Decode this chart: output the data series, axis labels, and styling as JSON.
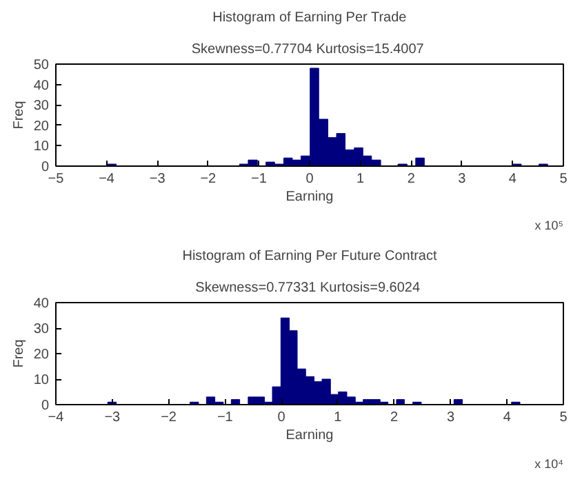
{
  "chart_data": [
    {
      "type": "histogram",
      "title": "Histogram of Earning Per Trade",
      "subtitle": "Skewness=0.77704  Kurtosis=15.4007",
      "xlabel": "Earning",
      "ylabel": "Freq",
      "annotations": [
        "x 10⁵"
      ],
      "color": "#00007f",
      "bins": [
        -3.98,
        -3.81,
        -3.63,
        -3.46,
        -3.29,
        -3.11,
        -2.94,
        -2.77,
        -2.59,
        -2.42,
        -2.25,
        -2.07,
        -1.9,
        -1.73,
        -1.55,
        -1.38,
        -1.21,
        -1.03,
        -0.86,
        -0.69,
        -0.51,
        -0.34,
        -0.17,
        0.01,
        0.18,
        0.36,
        0.53,
        0.7,
        0.88,
        1.05,
        1.22,
        1.4,
        1.57,
        1.74,
        1.92,
        2.09,
        2.26,
        2.44,
        2.61,
        2.78,
        2.96,
        3.13,
        3.3,
        3.48,
        3.65,
        3.82,
        4.0,
        4.17,
        4.34,
        4.52,
        4.69
      ],
      "values": [
        1,
        0,
        0,
        0,
        0,
        0,
        0,
        0,
        0,
        0,
        0,
        0,
        0,
        0,
        0,
        1,
        3,
        0,
        2,
        1,
        4,
        3,
        5,
        48,
        23,
        14,
        16,
        8,
        9,
        5,
        3,
        0,
        0,
        1,
        0,
        4,
        0,
        0,
        0,
        0,
        0,
        0,
        0,
        0,
        0,
        0,
        1,
        0,
        0,
        1
      ],
      "xlim": [
        -5,
        5
      ],
      "xticks": [
        -5,
        -4,
        -3,
        -2,
        -1,
        0,
        1,
        2,
        3,
        4,
        5
      ],
      "ylim": [
        0,
        50
      ],
      "yticks": [
        0,
        10,
        20,
        30,
        40,
        50
      ],
      "grid": false
    },
    {
      "type": "histogram",
      "title": "Histogram of Earning Per Future Contract",
      "subtitle": "Skewness=0.77331  Kurtosis=9.6024",
      "xlabel": "Earning",
      "ylabel": "Freq",
      "annotations": [
        "x 10⁴"
      ],
      "color": "#00007f",
      "bins": [
        -3.08,
        -2.93,
        -2.79,
        -2.64,
        -2.5,
        -2.35,
        -2.2,
        -2.06,
        -1.91,
        -1.76,
        -1.62,
        -1.47,
        -1.33,
        -1.18,
        -1.03,
        -0.89,
        -0.74,
        -0.59,
        -0.45,
        -0.3,
        -0.16,
        -0.01,
        0.14,
        0.28,
        0.43,
        0.58,
        0.72,
        0.87,
        1.01,
        1.16,
        1.31,
        1.45,
        1.6,
        1.75,
        1.89,
        2.04,
        2.18,
        2.33,
        2.48,
        2.62,
        2.77,
        2.91,
        3.06,
        3.21,
        3.35,
        3.5,
        3.65,
        3.79,
        3.94,
        4.08,
        4.23
      ],
      "values": [
        1,
        0,
        0,
        0,
        0,
        0,
        0,
        0,
        0,
        0,
        1,
        0,
        3,
        1,
        0,
        2,
        0,
        3,
        3,
        1,
        7,
        34,
        29,
        14,
        11,
        9,
        10,
        4,
        5,
        3,
        1,
        2,
        2,
        1,
        0,
        2,
        0,
        1,
        0,
        0,
        0,
        0,
        2,
        0,
        0,
        0,
        0,
        0,
        0,
        1
      ],
      "xlim": [
        -4,
        5
      ],
      "xticks": [
        -4,
        -3,
        -2,
        -1,
        0,
        1,
        2,
        3,
        4,
        5
      ],
      "ylim": [
        0,
        40
      ],
      "yticks": [
        0,
        10,
        20,
        30,
        40
      ],
      "grid": false
    }
  ]
}
